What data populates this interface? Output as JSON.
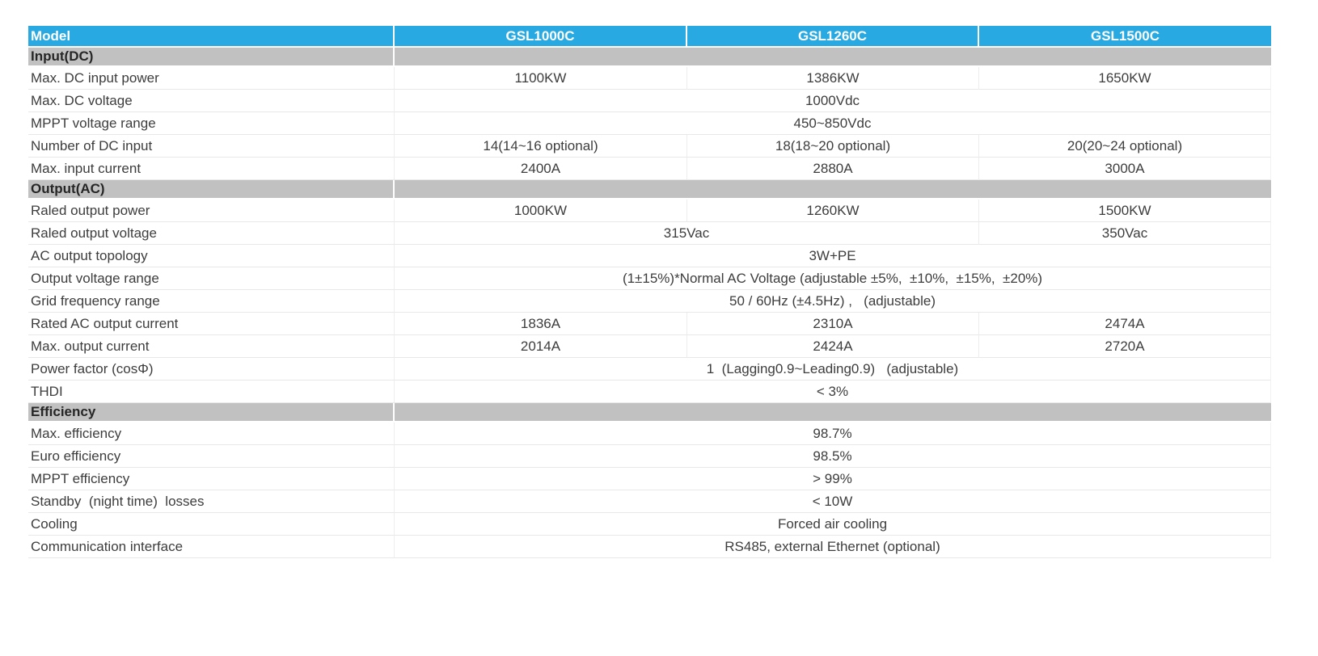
{
  "colors": {
    "header_bg": "#29a9e1",
    "header_text": "#ffffff",
    "section_bg": "#c1c1c1",
    "body_text": "#3d3d3d",
    "grid_line": "#e8e8e8"
  },
  "table": {
    "header": {
      "label": "Model",
      "models": [
        "GSL1000C",
        "GSL1260C",
        "GSL1500C"
      ]
    },
    "sections": [
      {
        "title": "Input(DC)",
        "rows": [
          {
            "label": "Max. DC input power",
            "cells": [
              {
                "text": "1100KW",
                "span": 1
              },
              {
                "text": "1386KW",
                "span": 1
              },
              {
                "text": "1650KW",
                "span": 1
              }
            ]
          },
          {
            "label": "Max. DC voltage",
            "cells": [
              {
                "text": "1000Vdc",
                "span": 3
              }
            ]
          },
          {
            "label": "MPPT voltage range",
            "cells": [
              {
                "text": "450~850Vdc",
                "span": 3
              }
            ]
          },
          {
            "label": "Number of DC input",
            "cells": [
              {
                "text": "14(14~16 optional)",
                "span": 1
              },
              {
                "text": "18(18~20 optional)",
                "span": 1
              },
              {
                "text": "20(20~24 optional)",
                "span": 1
              }
            ]
          },
          {
            "label": "Max. input current",
            "cells": [
              {
                "text": "2400A",
                "span": 1
              },
              {
                "text": "2880A",
                "span": 1
              },
              {
                "text": "3000A",
                "span": 1
              }
            ]
          }
        ]
      },
      {
        "title": "Output(AC)",
        "rows": [
          {
            "label": "Raled output power",
            "cells": [
              {
                "text": "1000KW",
                "span": 1
              },
              {
                "text": "1260KW",
                "span": 1
              },
              {
                "text": "1500KW",
                "span": 1
              }
            ]
          },
          {
            "label": "Raled output voltage",
            "cells": [
              {
                "text": "315Vac",
                "span": 2
              },
              {
                "text": "350Vac",
                "span": 1
              }
            ]
          },
          {
            "label": "AC output topology",
            "cells": [
              {
                "text": "3W+PE",
                "span": 3
              }
            ]
          },
          {
            "label": "Output voltage range",
            "cells": [
              {
                "text": "(1±15%)*Normal AC Voltage (adjustable ±5%,  ±10%,  ±15%,  ±20%)",
                "span": 3
              }
            ]
          },
          {
            "label": "Grid frequency range",
            "cells": [
              {
                "text": "50 / 60Hz (±4.5Hz) ,   (adjustable)",
                "span": 3
              }
            ]
          },
          {
            "label": "Rated AC output current",
            "cells": [
              {
                "text": "1836A",
                "span": 1
              },
              {
                "text": "2310A",
                "span": 1
              },
              {
                "text": "2474A",
                "span": 1
              }
            ]
          },
          {
            "label": "Max. output current",
            "cells": [
              {
                "text": "2014A",
                "span": 1
              },
              {
                "text": "2424A",
                "span": 1
              },
              {
                "text": "2720A",
                "span": 1
              }
            ]
          },
          {
            "label": "Power factor (cosΦ)",
            "cells": [
              {
                "text": "1  (Lagging0.9~Leading0.9)   (adjustable)",
                "span": 3
              }
            ]
          },
          {
            "label": "THDI",
            "cells": [
              {
                "text": "< 3%",
                "span": 3
              }
            ]
          }
        ]
      },
      {
        "title": "Efficiency",
        "rows": [
          {
            "label": "Max. efficiency",
            "cells": [
              {
                "text": "98.7%",
                "span": 3
              }
            ]
          },
          {
            "label": "Euro efficiency",
            "cells": [
              {
                "text": "98.5%",
                "span": 3
              }
            ]
          },
          {
            "label": "MPPT efficiency",
            "cells": [
              {
                "text": "> 99%",
                "span": 3
              }
            ]
          },
          {
            "label": "Standby  (night time)  losses",
            "cells": [
              {
                "text": "< 10W",
                "span": 3
              }
            ]
          },
          {
            "label": "Cooling",
            "cells": [
              {
                "text": "Forced air cooling",
                "span": 3
              }
            ]
          },
          {
            "label": "Communication interface",
            "cells": [
              {
                "text": "RS485, external Ethernet (optional)",
                "span": 3
              }
            ]
          }
        ]
      }
    ]
  }
}
